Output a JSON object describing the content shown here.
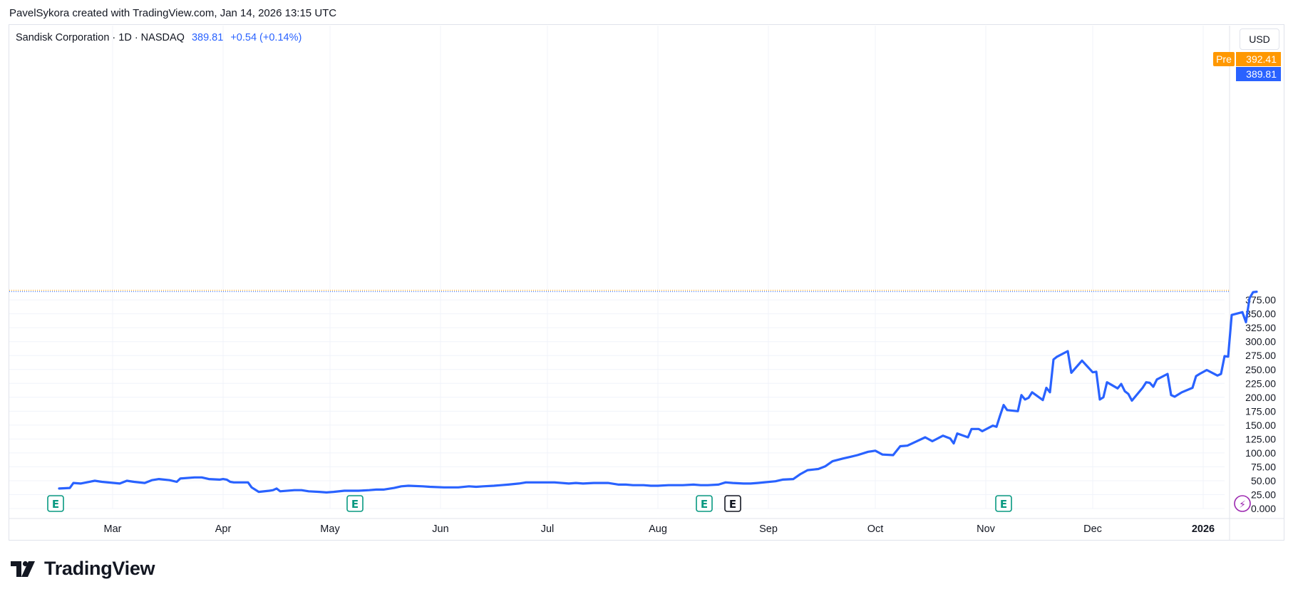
{
  "header": {
    "attribution": "PavelSykora created with TradingView.com, Jan 14, 2026 13:15 UTC"
  },
  "legend": {
    "symbol": "Sandisk Corporation · 1D · NASDAQ",
    "price": "389.81",
    "change": "+0.54 (+0.14%)"
  },
  "currency": "USD",
  "badges": {
    "pre_label": "Pre",
    "pre_price": "392.41",
    "last_price": "389.81"
  },
  "colors": {
    "line": "#2962ff",
    "pre": "#ff9800",
    "earnings": "#089981",
    "grid": "#f0f3fa"
  },
  "footer": {
    "brand": "TradingView"
  },
  "chart_data": {
    "type": "line",
    "ylim": [
      0,
      400
    ],
    "y_ticks": [
      0,
      25,
      50,
      75,
      100,
      125,
      150,
      175,
      200,
      225,
      250,
      275,
      300,
      325,
      350,
      375
    ],
    "y_tick_labels": [
      "0.000",
      "25.00",
      "50.00",
      "75.00",
      "100.00",
      "125.00",
      "150.00",
      "175.00",
      "200.00",
      "225.00",
      "250.00",
      "275.00",
      "300.00",
      "325.00",
      "350.00",
      "375.00"
    ],
    "x_labels": [
      "Mar",
      "Apr",
      "May",
      "Jun",
      "Jul",
      "Aug",
      "Sep",
      "Oct",
      "Nov",
      "Dec",
      "2026"
    ],
    "x_label_dates": [
      "2025-03-01",
      "2025-04-01",
      "2025-05-01",
      "2025-06-01",
      "2025-07-01",
      "2025-08-01",
      "2025-09-01",
      "2025-10-01",
      "2025-11-01",
      "2025-12-01",
      "2026-01-01"
    ],
    "earnings_markers": [
      {
        "date": "2025-02-13",
        "label": "E",
        "color": "#089981"
      },
      {
        "date": "2025-05-08",
        "label": "E",
        "color": "#089981"
      },
      {
        "date": "2025-08-14",
        "label": "E",
        "color": "#089981"
      },
      {
        "date": "2025-08-22",
        "label": "E",
        "color": "#131722"
      },
      {
        "date": "2025-11-06",
        "label": "E",
        "color": "#089981"
      }
    ],
    "lightning_marker": {
      "date": "2026-01-12",
      "label": "⚡"
    },
    "series": [
      {
        "points": [
          [
            "2025-02-14",
            36
          ],
          [
            "2025-02-17",
            37
          ],
          [
            "2025-02-18",
            46
          ],
          [
            "2025-02-20",
            45
          ],
          [
            "2025-02-24",
            50
          ],
          [
            "2025-02-26",
            48
          ],
          [
            "2025-03-03",
            45
          ],
          [
            "2025-03-05",
            50
          ],
          [
            "2025-03-07",
            48
          ],
          [
            "2025-03-10",
            46
          ],
          [
            "2025-03-12",
            51
          ],
          [
            "2025-03-14",
            53
          ],
          [
            "2025-03-17",
            51
          ],
          [
            "2025-03-19",
            48
          ],
          [
            "2025-03-20",
            54
          ],
          [
            "2025-03-24",
            56
          ],
          [
            "2025-03-26",
            56
          ],
          [
            "2025-03-28",
            53
          ],
          [
            "2025-03-31",
            52
          ],
          [
            "2025-04-01",
            53
          ],
          [
            "2025-04-02",
            52
          ],
          [
            "2025-04-03",
            48
          ],
          [
            "2025-04-04",
            47
          ],
          [
            "2025-04-08",
            47
          ],
          [
            "2025-04-09",
            38
          ],
          [
            "2025-04-11",
            30
          ],
          [
            "2025-04-14",
            32
          ],
          [
            "2025-04-15",
            33
          ],
          [
            "2025-04-16",
            36
          ],
          [
            "2025-04-17",
            31
          ],
          [
            "2025-04-21",
            33
          ],
          [
            "2025-04-23",
            33
          ],
          [
            "2025-04-25",
            31
          ],
          [
            "2025-04-28",
            30
          ],
          [
            "2025-04-30",
            29
          ],
          [
            "2025-05-02",
            30
          ],
          [
            "2025-05-05",
            32
          ],
          [
            "2025-05-07",
            32
          ],
          [
            "2025-05-09",
            32
          ],
          [
            "2025-05-12",
            33
          ],
          [
            "2025-05-14",
            34
          ],
          [
            "2025-05-16",
            34
          ],
          [
            "2025-05-19",
            37
          ],
          [
            "2025-05-21",
            40
          ],
          [
            "2025-05-23",
            41
          ],
          [
            "2025-05-27",
            40
          ],
          [
            "2025-05-29",
            39
          ],
          [
            "2025-06-02",
            38
          ],
          [
            "2025-06-04",
            38
          ],
          [
            "2025-06-06",
            38
          ],
          [
            "2025-06-09",
            40
          ],
          [
            "2025-06-11",
            39
          ],
          [
            "2025-06-13",
            40
          ],
          [
            "2025-06-16",
            41
          ],
          [
            "2025-06-18",
            42
          ],
          [
            "2025-06-20",
            43
          ],
          [
            "2025-06-23",
            45
          ],
          [
            "2025-06-25",
            47
          ],
          [
            "2025-06-27",
            47
          ],
          [
            "2025-06-30",
            47
          ],
          [
            "2025-07-03",
            47
          ],
          [
            "2025-07-07",
            45
          ],
          [
            "2025-07-09",
            46
          ],
          [
            "2025-07-11",
            45
          ],
          [
            "2025-07-14",
            46
          ],
          [
            "2025-07-16",
            46
          ],
          [
            "2025-07-18",
            46
          ],
          [
            "2025-07-21",
            43
          ],
          [
            "2025-07-23",
            43
          ],
          [
            "2025-07-25",
            42
          ],
          [
            "2025-07-28",
            42
          ],
          [
            "2025-07-30",
            41
          ],
          [
            "2025-08-01",
            41
          ],
          [
            "2025-08-04",
            42
          ],
          [
            "2025-08-06",
            42
          ],
          [
            "2025-08-08",
            42
          ],
          [
            "2025-08-11",
            43
          ],
          [
            "2025-08-13",
            42
          ],
          [
            "2025-08-15",
            42
          ],
          [
            "2025-08-18",
            43
          ],
          [
            "2025-08-20",
            47
          ],
          [
            "2025-08-22",
            46
          ],
          [
            "2025-08-25",
            45
          ],
          [
            "2025-08-27",
            45
          ],
          [
            "2025-08-29",
            46
          ],
          [
            "2025-09-03",
            49
          ],
          [
            "2025-09-05",
            52
          ],
          [
            "2025-09-08",
            53
          ],
          [
            "2025-09-10",
            62
          ],
          [
            "2025-09-12",
            69
          ],
          [
            "2025-09-15",
            71
          ],
          [
            "2025-09-17",
            76
          ],
          [
            "2025-09-19",
            85
          ],
          [
            "2025-09-22",
            90
          ],
          [
            "2025-09-24",
            93
          ],
          [
            "2025-09-26",
            96
          ],
          [
            "2025-09-29",
            102
          ],
          [
            "2025-10-01",
            104
          ],
          [
            "2025-10-03",
            97
          ],
          [
            "2025-10-06",
            96
          ],
          [
            "2025-10-08",
            112
          ],
          [
            "2025-10-10",
            113
          ],
          [
            "2025-10-13",
            122
          ],
          [
            "2025-10-15",
            128
          ],
          [
            "2025-10-17",
            121
          ],
          [
            "2025-10-20",
            131
          ],
          [
            "2025-10-22",
            126
          ],
          [
            "2025-10-23",
            117
          ],
          [
            "2025-10-24",
            135
          ],
          [
            "2025-10-27",
            128
          ],
          [
            "2025-10-28",
            143
          ],
          [
            "2025-10-30",
            143
          ],
          [
            "2025-10-31",
            139
          ],
          [
            "2025-11-03",
            149
          ],
          [
            "2025-11-04",
            147
          ],
          [
            "2025-11-05",
            167
          ],
          [
            "2025-11-06",
            186
          ],
          [
            "2025-11-07",
            177
          ],
          [
            "2025-11-10",
            175
          ],
          [
            "2025-11-11",
            204
          ],
          [
            "2025-11-12",
            196
          ],
          [
            "2025-11-13",
            199
          ],
          [
            "2025-11-14",
            209
          ],
          [
            "2025-11-17",
            195
          ],
          [
            "2025-11-18",
            217
          ],
          [
            "2025-11-19",
            209
          ],
          [
            "2025-11-20",
            268
          ],
          [
            "2025-11-21",
            273
          ],
          [
            "2025-11-24",
            283
          ],
          [
            "2025-11-25",
            244
          ],
          [
            "2025-11-28",
            266
          ],
          [
            "2025-12-01",
            245
          ],
          [
            "2025-12-02",
            246
          ],
          [
            "2025-12-03",
            196
          ],
          [
            "2025-12-04",
            200
          ],
          [
            "2025-12-05",
            227
          ],
          [
            "2025-12-08",
            216
          ],
          [
            "2025-12-09",
            224
          ],
          [
            "2025-12-10",
            211
          ],
          [
            "2025-12-11",
            206
          ],
          [
            "2025-12-12",
            194
          ],
          [
            "2025-12-15",
            217
          ],
          [
            "2025-12-16",
            227
          ],
          [
            "2025-12-17",
            226
          ],
          [
            "2025-12-18",
            219
          ],
          [
            "2025-12-19",
            232
          ],
          [
            "2025-12-22",
            242
          ],
          [
            "2025-12-23",
            204
          ],
          [
            "2025-12-24",
            201
          ],
          [
            "2025-12-26",
            209
          ],
          [
            "2025-12-29",
            217
          ],
          [
            "2025-12-30",
            238
          ],
          [
            "2025-12-31",
            242
          ],
          [
            "2026-01-02",
            249
          ],
          [
            "2026-01-05",
            239
          ],
          [
            "2026-01-06",
            242
          ],
          [
            "2026-01-07",
            274
          ],
          [
            "2026-01-08",
            273
          ],
          [
            "2026-01-09",
            348
          ],
          [
            "2026-01-12",
            353
          ],
          [
            "2026-01-13",
            335
          ],
          [
            "2026-01-14",
            378
          ],
          [
            "2026-01-15",
            389
          ],
          [
            "2026-01-16",
            389.81
          ]
        ]
      }
    ]
  }
}
